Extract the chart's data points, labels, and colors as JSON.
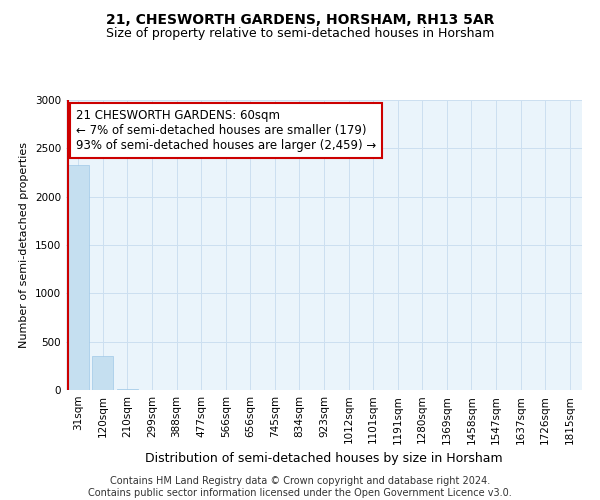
{
  "title": "21, CHESWORTH GARDENS, HORSHAM, RH13 5AR",
  "subtitle": "Size of property relative to semi-detached houses in Horsham",
  "xlabel": "Distribution of semi-detached houses by size in Horsham",
  "ylabel": "Number of semi-detached properties",
  "categories": [
    "31sqm",
    "120sqm",
    "210sqm",
    "299sqm",
    "388sqm",
    "477sqm",
    "566sqm",
    "656sqm",
    "745sqm",
    "834sqm",
    "923sqm",
    "1012sqm",
    "1101sqm",
    "1191sqm",
    "1280sqm",
    "1369sqm",
    "1458sqm",
    "1547sqm",
    "1637sqm",
    "1726sqm",
    "1815sqm"
  ],
  "values": [
    2330,
    350,
    12,
    0,
    0,
    0,
    0,
    0,
    0,
    0,
    0,
    0,
    0,
    0,
    0,
    0,
    0,
    0,
    0,
    0,
    0
  ],
  "bar_color": "#c5dff0",
  "bar_edge_color": "#a0c8e8",
  "vline_color": "#cc0000",
  "annotation_text": "21 CHESWORTH GARDENS: 60sqm\n← 7% of semi-detached houses are smaller (179)\n93% of semi-detached houses are larger (2,459) →",
  "annotation_box_edgecolor": "#cc0000",
  "annotation_bg": "#ffffff",
  "ylim": [
    0,
    3000
  ],
  "yticks": [
    0,
    500,
    1000,
    1500,
    2000,
    2500,
    3000
  ],
  "grid_color": "#ccdff0",
  "ax_bg_color": "#eaf4fb",
  "footnote": "Contains HM Land Registry data © Crown copyright and database right 2024.\nContains public sector information licensed under the Open Government Licence v3.0.",
  "title_fontsize": 10,
  "subtitle_fontsize": 9,
  "xlabel_fontsize": 9,
  "ylabel_fontsize": 8,
  "tick_fontsize": 7.5,
  "annotation_fontsize": 8.5,
  "footnote_fontsize": 7
}
